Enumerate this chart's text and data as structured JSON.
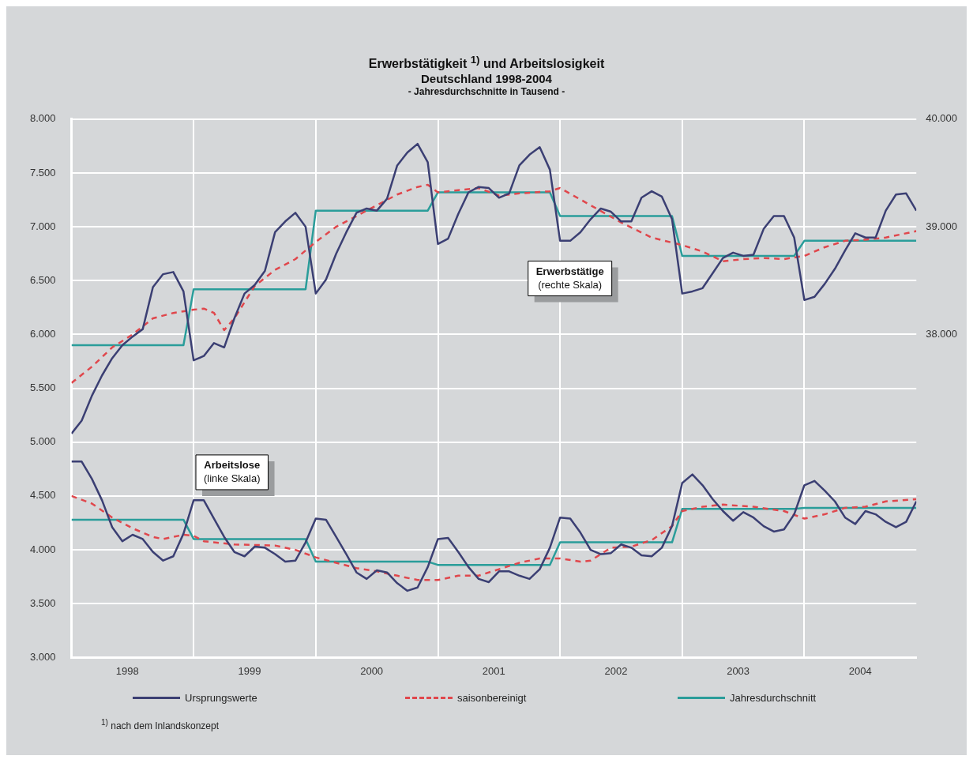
{
  "chart_data": {
    "type": "line",
    "title": "Erwerbstätigkeit $^{1)}$ und Arbeitslosigkeit",
    "subtitle": "Deutschland 1998-2004\n- Jahresdurchschnitte in Tausend -",
    "x": [
      "1998-01",
      "1998-02",
      "1998-03",
      "1998-04",
      "1998-05",
      "1998-06",
      "1998-07",
      "1998-08",
      "1998-09",
      "1998-10",
      "1998-11",
      "1998-12",
      "1999-01",
      "1999-02",
      "1999-03",
      "1999-04",
      "1999-05",
      "1999-06",
      "1999-07",
      "1999-08",
      "1999-09",
      "1999-10",
      "1999-11",
      "1999-12",
      "2000-01",
      "2000-02",
      "2000-03",
      "2000-04",
      "2000-05",
      "2000-06",
      "2000-07",
      "2000-08",
      "2000-09",
      "2000-10",
      "2000-11",
      "2000-12",
      "2001-01",
      "2001-02",
      "2001-03",
      "2001-04",
      "2001-05",
      "2001-06",
      "2001-07",
      "2001-08",
      "2001-09",
      "2001-10",
      "2001-11",
      "2001-12",
      "2002-01",
      "2002-02",
      "2002-03",
      "2002-04",
      "2002-05",
      "2002-06",
      "2002-07",
      "2002-08",
      "2002-09",
      "2002-10",
      "2002-11",
      "2002-12",
      "2003-01",
      "2003-02",
      "2003-03",
      "2003-04",
      "2003-05",
      "2003-06",
      "2003-07",
      "2003-08",
      "2003-09",
      "2003-10",
      "2003-11",
      "2003-12",
      "2004-01",
      "2004-02",
      "2004-03",
      "2004-04",
      "2004-05",
      "2004-06",
      "2004-07",
      "2004-08",
      "2004-09",
      "2004-10",
      "2004-11",
      "2004-12"
    ],
    "series": [
      {
        "name": "Ursprungswerte",
        "color": "#3b3f73",
        "values": [
          4820,
          4820,
          4660,
          4460,
          4210,
          4080,
          4140,
          4100,
          3980,
          3900,
          3940,
          4150,
          4460,
          4460,
          4290,
          4120,
          3980,
          3940,
          4030,
          4020,
          3960,
          3890,
          3900,
          4070,
          4290,
          4280,
          4120,
          3960,
          3790,
          3730,
          3810,
          3790,
          3690,
          3620,
          3650,
          3840,
          4100,
          4110,
          3980,
          3840,
          3730,
          3700,
          3800,
          3800,
          3760,
          3730,
          3820,
          4020,
          4300,
          4290,
          4160,
          4000,
          3960,
          3970,
          4050,
          4020,
          3950,
          3940,
          4020,
          4220,
          4620,
          4700,
          4600,
          4470,
          4360,
          4270,
          4350,
          4300,
          4220,
          4170,
          4190,
          4330,
          4600,
          4640,
          4550,
          4450,
          4300,
          4240,
          4360,
          4330,
          4260,
          4210,
          4260,
          4450
        ]
      },
      {
        "name": "saisonbereinigt",
        "color": "#e0474c",
        "line_style": "dashed",
        "x": [
          "1998-01",
          "1998-03",
          "1998-05",
          "1998-07",
          "1998-09",
          "1998-10",
          "1998-11",
          "1998-12",
          "1999-01",
          "1999-02",
          "1999-05",
          "1999-09",
          "1999-11",
          "2000-01",
          "2000-03",
          "2000-05",
          "2000-07",
          "2000-09",
          "2000-11",
          "2001-01",
          "2001-03",
          "2001-05",
          "2001-09",
          "2001-11",
          "2002-01",
          "2002-03",
          "2002-04",
          "2002-06",
          "2002-08",
          "2002-10",
          "2002-12",
          "2003-01",
          "2003-03",
          "2003-05",
          "2003-08",
          "2003-11",
          "2004-01",
          "2004-03",
          "2004-05",
          "2004-07",
          "2004-09",
          "2004-12"
        ],
        "values": [
          4500,
          4430,
          4300,
          4200,
          4120,
          4100,
          4120,
          4140,
          4130,
          4080,
          4050,
          4040,
          4000,
          3930,
          3880,
          3830,
          3800,
          3760,
          3720,
          3720,
          3760,
          3760,
          3880,
          3920,
          3920,
          3890,
          3900,
          4020,
          4030,
          4090,
          4220,
          4360,
          4400,
          4420,
          4400,
          4360,
          4290,
          4330,
          4390,
          4400,
          4450,
          4470
        ]
      },
      {
        "name": "Jahresdurchschnitt",
        "color": "#2a9d9a",
        "x": [
          "1998-01",
          "1998-12",
          "1999-01",
          "1999-12",
          "2000-01",
          "2000-12",
          "2001-01",
          "2001-12",
          "2002-01",
          "2002-12",
          "2003-01",
          "2003-12",
          "2004-01",
          "2004-12"
        ],
        "values": [
          4280,
          4280,
          4100,
          4100,
          3890,
          3890,
          3860,
          3860,
          4070,
          4070,
          4380,
          4380,
          4390,
          4390
        ]
      },
      {
        "color": "#3b3f73",
        "axis": "y2",
        "values": [
          37080,
          37200,
          37430,
          37620,
          37780,
          37900,
          37980,
          38050,
          38440,
          38560,
          38580,
          38400,
          37760,
          37800,
          37920,
          37880,
          38150,
          38380,
          38460,
          38590,
          38950,
          39050,
          39130,
          39000,
          38380,
          38510,
          38750,
          38950,
          39130,
          39170,
          39150,
          39260,
          39570,
          39690,
          39770,
          39600,
          38840,
          38890,
          39120,
          39320,
          39370,
          39360,
          39270,
          39310,
          39570,
          39670,
          39740,
          39530,
          38870,
          38870,
          38950,
          39070,
          39170,
          39140,
          39050,
          39050,
          39270,
          39330,
          39280,
          39070,
          38380,
          38400,
          38430,
          38570,
          38710,
          38760,
          38730,
          38740,
          38980,
          39100,
          39100,
          38900,
          38320,
          38350,
          38470,
          38610,
          38780,
          38940,
          38900,
          38900,
          39150,
          39300,
          39310,
          39150
        ]
      },
      {
        "color": "#e0474c",
        "axis": "y2",
        "line_style": "dashed",
        "x": [
          "1998-01",
          "1998-03",
          "1998-05",
          "1998-07",
          "1998-09",
          "1998-11",
          "1999-01",
          "1999-02",
          "1999-03",
          "1999-04",
          "1999-05",
          "1999-07",
          "1999-09",
          "1999-11",
          "2000-01",
          "2000-03",
          "2000-05",
          "2000-07",
          "2000-09",
          "2000-11",
          "2000-12",
          "2001-01",
          "2001-03",
          "2001-05",
          "2001-07",
          "2001-09",
          "2001-12",
          "2002-01",
          "2002-04",
          "2002-07",
          "2002-10",
          "2003-01",
          "2003-03",
          "2003-05",
          "2003-07",
          "2003-09",
          "2003-11",
          "2004-01",
          "2004-03",
          "2004-05",
          "2004-07",
          "2004-09",
          "2004-12"
        ],
        "values": [
          37550,
          37700,
          37880,
          38000,
          38150,
          38200,
          38230,
          38240,
          38200,
          38040,
          38150,
          38450,
          38600,
          38700,
          38860,
          39000,
          39100,
          39200,
          39300,
          39370,
          39390,
          39320,
          39340,
          39360,
          39290,
          39310,
          39330,
          39360,
          39200,
          39040,
          38900,
          38830,
          38770,
          38680,
          38700,
          38710,
          38700,
          38730,
          38810,
          38870,
          38880,
          38900,
          38960
        ]
      },
      {
        "color": "#2a9d9a",
        "axis": "y2",
        "x": [
          "1998-01",
          "1998-12",
          "1999-01",
          "1999-12",
          "2000-01",
          "2000-12",
          "2001-01",
          "2001-12",
          "2002-01",
          "2002-12",
          "2003-01",
          "2003-12",
          "2004-01",
          "2004-12"
        ],
        "values": [
          37900,
          37900,
          38420,
          38420,
          39150,
          39150,
          39320,
          39320,
          39100,
          39100,
          38730,
          38730,
          38870,
          38870
        ]
      }
    ],
    "xlim": [
      "1998-01",
      "2004-12"
    ],
    "xticks": [
      {
        "value": "1998-06-16",
        "label": "1998"
      },
      {
        "value": "1999-01",
        "label": null
      },
      {
        "value": "1999-06-16",
        "label": "1999"
      },
      {
        "value": "2000-01",
        "label": null
      },
      {
        "value": "2000-06-16",
        "label": "2000"
      },
      {
        "value": "2001-01",
        "label": null
      },
      {
        "value": "2001-06-16",
        "label": "2001"
      },
      {
        "value": "2002-01",
        "label": null
      },
      {
        "value": "2002-06-16",
        "label": "2002"
      },
      {
        "value": "2003-01",
        "label": null
      },
      {
        "value": "2003-06-16",
        "label": "2003"
      },
      {
        "value": "2004-01",
        "label": null
      },
      {
        "value": "2004-06-16",
        "label": "2004"
      }
    ],
    "ylim": [
      3000,
      8000
    ],
    "yticks": [
      {
        "value": 3000,
        "label": "3.000"
      },
      {
        "value": 3500,
        "label": "3.500"
      },
      {
        "value": 4000,
        "label": "4.000"
      },
      {
        "value": 4500,
        "label": "4.500"
      },
      {
        "value": 5000,
        "label": "5.000"
      },
      {
        "value": 5500,
        "label": "5.500"
      },
      {
        "value": 6000,
        "label": "6.000"
      },
      {
        "value": 6500,
        "label": "6.500"
      },
      {
        "value": 7000,
        "label": "7.000"
      },
      {
        "value": 7500,
        "label": "7.500"
      },
      {
        "value": 8000,
        "label": "8.000"
      }
    ],
    "y2lim": [
      35000,
      40000
    ],
    "y2ticks": [
      {
        "value": 38000,
        "label": "38.000"
      },
      {
        "value": 39000,
        "label": "39.000"
      },
      {
        "value": 40000,
        "label": "40.000"
      }
    ],
    "grid": true,
    "legend": "bottom",
    "annotations": [
      "Erwerbstätige\n(rechte Skala)",
      "Arbeitslose\n(linke Skala)",
      "$^{1)}$ nach dem Inlandskonzept"
    ]
  }
}
